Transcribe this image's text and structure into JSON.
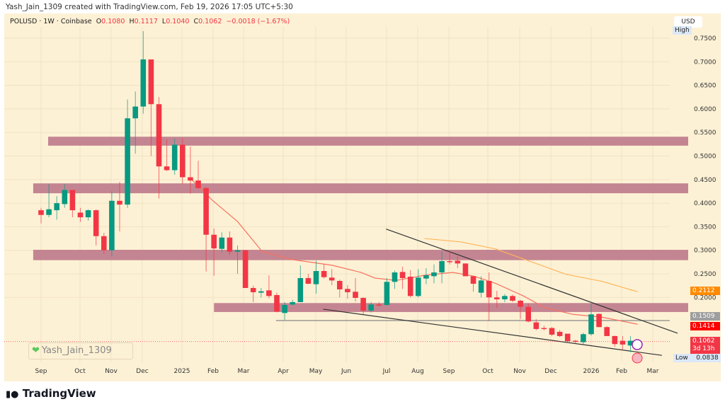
{
  "credit": "Yash_Jain_1309 created with TradingView.com, Feb 19, 2026 17:05 UTC+5:30",
  "legend": {
    "symbol": "POLUSD · 1W · Coinbase",
    "o_label": "O",
    "o": "0.1080",
    "h_label": "H",
    "h": "0.1117",
    "l_label": "L",
    "l": "0.1040",
    "c_label": "C",
    "c": "0.1062",
    "change": "−0.0018 (−1.67%)"
  },
  "currency": "USD",
  "high_label": "High",
  "low_label": "Low",
  "low_value": "0.0838",
  "price_ticks": [
    "0.7500",
    "0.7000",
    "0.6500",
    "0.6000",
    "0.5500",
    "0.5000",
    "0.4500",
    "0.4000",
    "0.3500",
    "0.3000",
    "0.2500",
    "0.2000"
  ],
  "price_labels": [
    {
      "value": "0.2112",
      "color": "#ff8a00"
    },
    {
      "value": "0.1509",
      "color": "#9e9e9e"
    },
    {
      "value": "0.1414",
      "color": "#ff0000"
    },
    {
      "value": "0.1062",
      "countdown": "3d 13h",
      "color": "#f23645"
    }
  ],
  "time_labels": [
    "Sep",
    "Oct",
    "Nov",
    "Dec",
    "2025",
    "Feb",
    "Mar",
    "Apr",
    "May",
    "Jun",
    "Jul",
    "Aug",
    "Sep",
    "Oct",
    "Nov",
    "Dec",
    "2026",
    "Feb",
    "Mar"
  ],
  "watermark": "Yash_Jain_1309",
  "logo": "TradingView",
  "colors": {
    "up": "#089981",
    "down": "#f23645",
    "zone": "#c17e8e",
    "ma_fast": "#f7725f",
    "ma_slow": "#ffb55a",
    "trend": "#333333",
    "bg": "#fdf1d5"
  },
  "chart_data": {
    "type": "candlestick",
    "interval": "1W",
    "candles": [
      [
        0.385,
        0.39,
        0.357,
        0.375
      ],
      [
        0.375,
        0.44,
        0.37,
        0.387
      ],
      [
        0.385,
        0.415,
        0.365,
        0.4
      ],
      [
        0.398,
        0.44,
        0.39,
        0.428
      ],
      [
        0.428,
        0.428,
        0.37,
        0.385
      ],
      [
        0.38,
        0.39,
        0.36,
        0.37
      ],
      [
        0.37,
        0.387,
        0.363,
        0.385
      ],
      [
        0.385,
        0.387,
        0.31,
        0.33
      ],
      [
        0.33,
        0.337,
        0.292,
        0.3
      ],
      [
        0.3,
        0.425,
        0.287,
        0.405
      ],
      [
        0.405,
        0.445,
        0.34,
        0.397
      ],
      [
        0.397,
        0.62,
        0.39,
        0.58
      ],
      [
        0.58,
        0.637,
        0.505,
        0.605
      ],
      [
        0.605,
        0.765,
        0.59,
        0.705
      ],
      [
        0.705,
        0.705,
        0.5,
        0.61
      ],
      [
        0.61,
        0.625,
        0.41,
        0.478
      ],
      [
        0.478,
        0.535,
        0.468,
        0.47
      ],
      [
        0.47,
        0.537,
        0.46,
        0.524
      ],
      [
        0.524,
        0.538,
        0.44,
        0.455
      ],
      [
        0.455,
        0.52,
        0.42,
        0.448
      ],
      [
        0.448,
        0.49,
        0.43,
        0.432
      ],
      [
        0.432,
        0.435,
        0.255,
        0.333
      ],
      [
        0.333,
        0.346,
        0.246,
        0.304
      ],
      [
        0.303,
        0.338,
        0.296,
        0.327
      ],
      [
        0.327,
        0.34,
        0.29,
        0.297
      ],
      [
        0.297,
        0.31,
        0.25,
        0.3
      ],
      [
        0.3,
        0.3,
        0.22,
        0.22
      ],
      [
        0.22,
        0.225,
        0.19,
        0.211
      ],
      [
        0.21,
        0.22,
        0.2,
        0.213
      ],
      [
        0.215,
        0.247,
        0.198,
        0.203
      ],
      [
        0.205,
        0.21,
        0.168,
        0.17
      ],
      [
        0.167,
        0.19,
        0.152,
        0.184
      ],
      [
        0.185,
        0.195,
        0.183,
        0.19
      ],
      [
        0.19,
        0.268,
        0.19,
        0.241
      ],
      [
        0.241,
        0.25,
        0.228,
        0.229
      ],
      [
        0.228,
        0.278,
        0.208,
        0.256
      ],
      [
        0.256,
        0.27,
        0.24,
        0.243
      ],
      [
        0.242,
        0.26,
        0.226,
        0.236
      ],
      [
        0.235,
        0.238,
        0.2,
        0.217
      ],
      [
        0.218,
        0.226,
        0.197,
        0.211
      ],
      [
        0.212,
        0.241,
        0.191,
        0.199
      ],
      [
        0.199,
        0.2,
        0.164,
        0.172
      ],
      [
        0.172,
        0.19,
        0.168,
        0.185
      ],
      [
        0.185,
        0.19,
        0.18,
        0.184
      ],
      [
        0.184,
        0.241,
        0.183,
        0.233
      ],
      [
        0.233,
        0.257,
        0.218,
        0.253
      ],
      [
        0.254,
        0.265,
        0.218,
        0.241
      ],
      [
        0.244,
        0.258,
        0.2,
        0.203
      ],
      [
        0.203,
        0.26,
        0.2,
        0.242
      ],
      [
        0.24,
        0.262,
        0.228,
        0.247
      ],
      [
        0.245,
        0.27,
        0.23,
        0.253
      ],
      [
        0.253,
        0.297,
        0.23,
        0.277
      ],
      [
        0.277,
        0.297,
        0.27,
        0.275
      ],
      [
        0.278,
        0.287,
        0.262,
        0.272
      ],
      [
        0.272,
        0.272,
        0.245,
        0.245
      ],
      [
        0.245,
        0.245,
        0.212,
        0.229
      ],
      [
        0.21,
        0.245,
        0.2,
        0.236
      ],
      [
        0.235,
        0.253,
        0.15,
        0.2
      ],
      [
        0.2,
        0.214,
        0.178,
        0.196
      ],
      [
        0.196,
        0.207,
        0.19,
        0.203
      ],
      [
        0.203,
        0.206,
        0.19,
        0.193
      ],
      [
        0.193,
        0.195,
        0.154,
        0.18
      ],
      [
        0.18,
        0.187,
        0.147,
        0.149
      ],
      [
        0.147,
        0.154,
        0.13,
        0.133
      ],
      [
        0.135,
        0.14,
        0.13,
        0.133
      ],
      [
        0.135,
        0.137,
        0.118,
        0.121
      ],
      [
        0.127,
        0.131,
        0.116,
        0.118
      ],
      [
        0.123,
        0.118,
        0.104,
        0.107
      ],
      [
        0.108,
        0.11,
        0.102,
        0.107
      ],
      [
        0.105,
        0.125,
        0.101,
        0.122
      ],
      [
        0.122,
        0.187,
        0.119,
        0.164
      ],
      [
        0.165,
        0.166,
        0.137,
        0.137
      ],
      [
        0.137,
        0.139,
        0.118,
        0.118
      ],
      [
        0.118,
        0.119,
        0.095,
        0.101
      ],
      [
        0.108,
        0.118,
        0.088,
        0.1
      ],
      [
        0.098,
        0.118,
        0.0838,
        0.108
      ],
      [
        0.108,
        0.1117,
        0.104,
        0.1062
      ]
    ],
    "ma_fast": [
      [
        19.1,
        0.451
      ],
      [
        21.8,
        0.406
      ],
      [
        25,
        0.361
      ],
      [
        28.1,
        0.298
      ],
      [
        31.7,
        0.281
      ],
      [
        37.1,
        0.268
      ],
      [
        40.7,
        0.253
      ],
      [
        42.5,
        0.241
      ],
      [
        45.2,
        0.236
      ],
      [
        48.8,
        0.247
      ],
      [
        52.4,
        0.253
      ],
      [
        55.1,
        0.245
      ],
      [
        57.8,
        0.23
      ],
      [
        61.4,
        0.203
      ],
      [
        64.1,
        0.178
      ],
      [
        67.7,
        0.164
      ],
      [
        71.4,
        0.158
      ],
      [
        75.9,
        0.143
      ]
    ],
    "ma_slow": [
      [
        48.8,
        0.325
      ],
      [
        53.3,
        0.318
      ],
      [
        57.8,
        0.303
      ],
      [
        62.3,
        0.276
      ],
      [
        66.8,
        0.249
      ],
      [
        71.4,
        0.234
      ],
      [
        75.9,
        0.212
      ]
    ],
    "trendlines": [
      [
        [
          43.9,
          0.345
        ],
        [
          81,
          0.124
        ]
      ],
      [
        [
          35.9,
          0.175
        ],
        [
          79,
          0.077
        ]
      ]
    ],
    "horizontal_line": {
      "from": 29.9,
      "price": 0.1509
    },
    "zones": [
      {
        "from": 0.9,
        "top": 0.541,
        "bottom": 0.522
      },
      {
        "from": -1,
        "top": 0.442,
        "bottom": 0.421
      },
      {
        "from": -1,
        "top": 0.301,
        "bottom": 0.279
      },
      {
        "from": 22,
        "top": 0.188,
        "bottom": 0.169
      }
    ],
    "ylim": [
      0.06,
      0.77
    ]
  }
}
